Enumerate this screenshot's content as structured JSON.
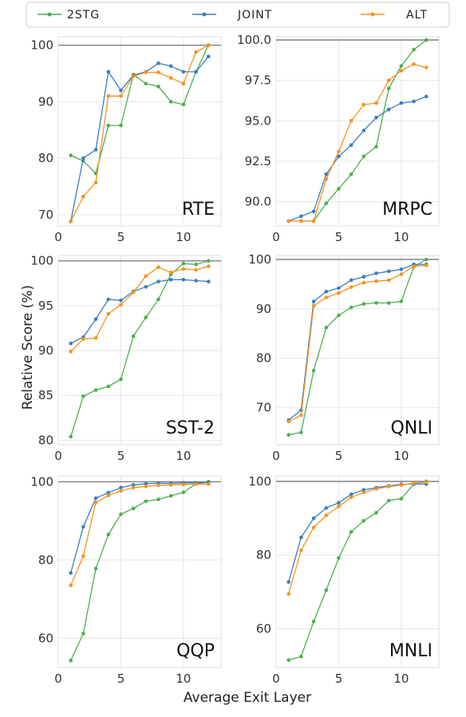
{
  "chart_data": {
    "type": "line",
    "xlabel": "Average Exit Layer",
    "ylabel": "Relative Score (%)",
    "grid": true,
    "legend": {
      "placement": "top",
      "entries": [
        {
          "name": "2STG",
          "color": "#4caf50"
        },
        {
          "name": "JOINT",
          "color": "#3a7dbf"
        },
        {
          "name": "ALT",
          "color": "#f7921e"
        }
      ]
    },
    "reference_line": 100,
    "panels": [
      {
        "label": "RTE",
        "xlim": [
          0,
          13
        ],
        "xticks": [
          0,
          5,
          10
        ],
        "ylim": [
          68,
          101.5
        ],
        "yticks": [
          70,
          80,
          90,
          100
        ],
        "series": [
          {
            "name": "2STG",
            "x": [
              1,
              2,
              3,
              4,
              5,
              6,
              7,
              8,
              9,
              10,
              11,
              12
            ],
            "y": [
              80.5,
              79.5,
              77.3,
              85.8,
              85.8,
              94.8,
              93.2,
              92.7,
              90.0,
              89.5,
              95.3,
              100.0
            ]
          },
          {
            "name": "JOINT",
            "x": [
              1,
              2,
              3,
              4,
              5,
              6,
              7,
              8,
              9,
              10,
              11,
              12
            ],
            "y": [
              68.8,
              80.0,
              81.5,
              95.3,
              92.0,
              94.7,
              95.3,
              96.8,
              96.3,
              95.3,
              95.3,
              98.0
            ]
          },
          {
            "name": "ALT",
            "x": [
              1,
              2,
              3,
              4,
              5,
              6,
              7,
              8,
              9,
              10,
              11,
              12
            ],
            "y": [
              68.8,
              73.2,
              75.7,
              91.0,
              91.0,
              94.5,
              95.2,
              95.2,
              94.2,
              93.2,
              98.8,
              100.0
            ]
          }
        ]
      },
      {
        "label": "MRPC",
        "xlim": [
          0,
          13
        ],
        "xticks": [
          0,
          5,
          10
        ],
        "ylim": [
          88.5,
          100.2
        ],
        "yticks": [
          90.0,
          92.5,
          95.0,
          97.5,
          100.0
        ],
        "ytick_format": "fixed1",
        "series": [
          {
            "name": "2STG",
            "x": [
              1,
              2,
              3,
              4,
              5,
              6,
              7,
              8,
              9,
              10,
              11,
              12
            ],
            "y": [
              88.8,
              88.8,
              88.8,
              89.9,
              90.8,
              91.7,
              92.8,
              93.4,
              97.0,
              98.4,
              99.4,
              100.0
            ]
          },
          {
            "name": "JOINT",
            "x": [
              1,
              2,
              3,
              4,
              5,
              6,
              7,
              8,
              9,
              10,
              11,
              12
            ],
            "y": [
              88.8,
              89.1,
              89.4,
              91.7,
              92.8,
              93.5,
              94.4,
              95.2,
              95.7,
              96.1,
              96.2,
              96.5
            ]
          },
          {
            "name": "ALT",
            "x": [
              1,
              2,
              3,
              4,
              5,
              6,
              7,
              8,
              9,
              10,
              11,
              12
            ],
            "y": [
              88.8,
              88.8,
              88.8,
              91.4,
              93.1,
              95.0,
              96.0,
              96.1,
              97.5,
              98.1,
              98.5,
              98.3
            ]
          }
        ]
      },
      {
        "label": "SST-2",
        "xlim": [
          0,
          13
        ],
        "xticks": [
          0,
          5,
          10
        ],
        "ylim": [
          79.5,
          100.6
        ],
        "yticks": [
          80,
          85,
          90,
          95,
          100
        ],
        "series": [
          {
            "name": "2STG",
            "x": [
              1,
              2,
              3,
              4,
              5,
              6,
              7,
              8,
              9,
              10,
              11,
              12
            ],
            "y": [
              80.4,
              84.9,
              85.6,
              86.0,
              86.8,
              91.6,
              93.7,
              95.7,
              98.5,
              99.7,
              99.6,
              100.0
            ]
          },
          {
            "name": "JOINT",
            "x": [
              1,
              2,
              3,
              4,
              5,
              6,
              7,
              8,
              9,
              10,
              11,
              12
            ],
            "y": [
              90.8,
              91.5,
              93.5,
              95.7,
              95.6,
              96.6,
              97.1,
              97.7,
              97.9,
              97.9,
              97.8,
              97.7
            ]
          },
          {
            "name": "ALT",
            "x": [
              1,
              2,
              3,
              4,
              5,
              6,
              7,
              8,
              9,
              10,
              11,
              12
            ],
            "y": [
              89.9,
              91.3,
              91.4,
              94.1,
              95.1,
              96.5,
              98.3,
              99.3,
              98.7,
              99.1,
              99.0,
              99.4
            ]
          }
        ]
      },
      {
        "label": "QNLI",
        "xlim": [
          0,
          13
        ],
        "xticks": [
          0,
          5,
          10
        ],
        "ylim": [
          62.5,
          100.8
        ],
        "yticks": [
          70,
          80,
          90,
          100
        ],
        "series": [
          {
            "name": "2STG",
            "x": [
              1,
              2,
              3,
              4,
              5,
              6,
              7,
              8,
              9,
              10,
              11,
              12
            ],
            "y": [
              64.5,
              65.0,
              77.5,
              86.2,
              88.7,
              90.3,
              91.0,
              91.2,
              91.2,
              91.5,
              98.5,
              100.0
            ]
          },
          {
            "name": "JOINT",
            "x": [
              1,
              2,
              3,
              4,
              5,
              6,
              7,
              8,
              9,
              10,
              11,
              12
            ],
            "y": [
              67.5,
              69.5,
              91.5,
              93.5,
              94.2,
              95.8,
              96.5,
              97.2,
              97.6,
              98.0,
              99.0,
              99.0
            ]
          },
          {
            "name": "ALT",
            "x": [
              1,
              2,
              3,
              4,
              5,
              6,
              7,
              8,
              9,
              10,
              11,
              12
            ],
            "y": [
              67.2,
              68.5,
              90.6,
              92.3,
              93.2,
              94.4,
              95.3,
              95.6,
              95.8,
              97.0,
              98.6,
              98.8
            ]
          }
        ]
      },
      {
        "label": "QQP",
        "xlim": [
          0,
          13
        ],
        "xticks": [
          0,
          5,
          10
        ],
        "ylim": [
          52.5,
          101.5
        ],
        "yticks": [
          60,
          80,
          100
        ],
        "series": [
          {
            "name": "2STG",
            "x": [
              1,
              2,
              3,
              4,
              5,
              6,
              7,
              8,
              9,
              10,
              11,
              12
            ],
            "y": [
              54.3,
              61.2,
              77.8,
              86.5,
              91.7,
              93.2,
              95.0,
              95.5,
              96.4,
              97.3,
              99.5,
              100.0
            ]
          },
          {
            "name": "JOINT",
            "x": [
              1,
              2,
              3,
              4,
              5,
              6,
              7,
              8,
              9,
              10,
              11,
              12
            ],
            "y": [
              76.7,
              88.5,
              95.8,
              97.2,
              98.5,
              99.2,
              99.5,
              99.6,
              99.6,
              99.7,
              99.7,
              99.8
            ]
          },
          {
            "name": "ALT",
            "x": [
              1,
              2,
              3,
              4,
              5,
              6,
              7,
              8,
              9,
              10,
              11,
              12
            ],
            "y": [
              73.5,
              81.0,
              94.7,
              96.5,
              97.7,
              98.5,
              98.8,
              99.1,
              99.2,
              99.3,
              99.4,
              99.4
            ]
          }
        ]
      },
      {
        "label": "MNLI",
        "xlim": [
          0,
          13
        ],
        "xticks": [
          0,
          5,
          10
        ],
        "ylim": [
          49.5,
          101.5
        ],
        "yticks": [
          60,
          80,
          100
        ],
        "series": [
          {
            "name": "2STG",
            "x": [
              1,
              2,
              3,
              4,
              5,
              6,
              7,
              8,
              9,
              10,
              11,
              12
            ],
            "y": [
              51.5,
              52.5,
              62.0,
              70.5,
              79.2,
              86.3,
              89.3,
              91.5,
              94.8,
              95.3,
              99.3,
              100.0
            ]
          },
          {
            "name": "JOINT",
            "x": [
              1,
              2,
              3,
              4,
              5,
              6,
              7,
              8,
              9,
              10,
              11,
              12
            ],
            "y": [
              72.7,
              84.8,
              90.0,
              92.8,
              94.2,
              96.5,
              97.7,
              98.3,
              98.8,
              99.2,
              99.3,
              99.3
            ]
          },
          {
            "name": "ALT",
            "x": [
              1,
              2,
              3,
              4,
              5,
              6,
              7,
              8,
              9,
              10,
              11,
              12
            ],
            "y": [
              69.5,
              81.3,
              87.5,
              90.8,
              93.2,
              95.7,
              97.0,
              98.0,
              98.6,
              99.0,
              99.5,
              99.8
            ]
          }
        ]
      }
    ]
  }
}
